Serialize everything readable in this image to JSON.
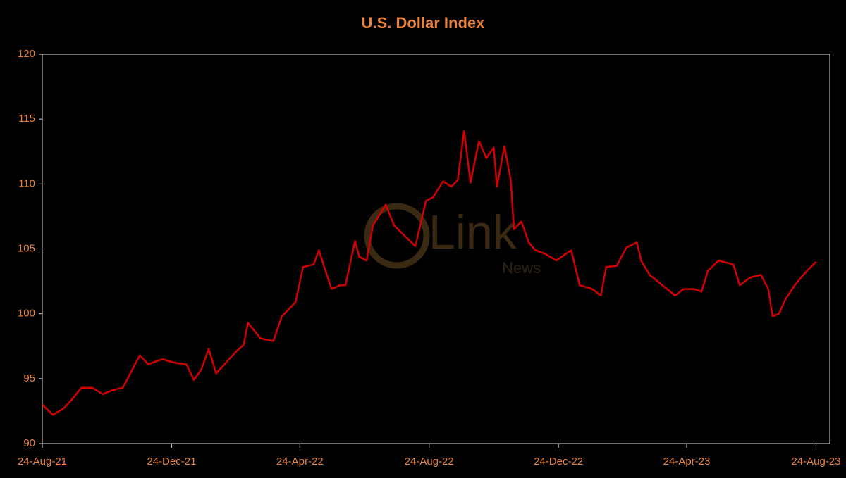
{
  "chart_data": {
    "type": "line",
    "title": "U.S. Dollar Index",
    "watermark": {
      "text": "Link",
      "subtext": "News"
    },
    "x": [
      "2021-08-24",
      "2021-09-03",
      "2021-09-13",
      "2021-09-20",
      "2021-09-30",
      "2021-10-10",
      "2021-10-20",
      "2021-10-29",
      "2021-11-08",
      "2021-11-15",
      "2021-11-24",
      "2021-12-02",
      "2021-12-15",
      "2021-12-28",
      "2022-01-07",
      "2022-01-14",
      "2022-01-21",
      "2022-01-28",
      "2022-02-04",
      "2022-02-13",
      "2022-02-23",
      "2022-03-02",
      "2022-03-06",
      "2022-03-18",
      "2022-03-30",
      "2022-04-07",
      "2022-04-20",
      "2022-04-27",
      "2022-05-07",
      "2022-05-12",
      "2022-05-17",
      "2022-05-24",
      "2022-06-01",
      "2022-06-06",
      "2022-06-15",
      "2022-06-19",
      "2022-06-26",
      "2022-07-02",
      "2022-07-14",
      "2022-07-22",
      "2022-08-01",
      "2022-08-11",
      "2022-08-21",
      "2022-08-28",
      "2022-09-06",
      "2022-09-14",
      "2022-09-20",
      "2022-09-26",
      "2022-10-02",
      "2022-10-10",
      "2022-10-17",
      "2022-10-24",
      "2022-10-27",
      "2022-11-03",
      "2022-11-09",
      "2022-11-12",
      "2022-11-19",
      "2022-11-26",
      "2022-12-02",
      "2022-12-12",
      "2022-12-22",
      "2023-01-05",
      "2023-01-13",
      "2023-01-25",
      "2023-02-02",
      "2023-02-07",
      "2023-02-17",
      "2023-02-26",
      "2023-03-08",
      "2023-03-12",
      "2023-03-20",
      "2023-04-01",
      "2023-04-13",
      "2023-04-21",
      "2023-05-01",
      "2023-05-08",
      "2023-05-14",
      "2023-05-24",
      "2023-06-07",
      "2023-06-13",
      "2023-06-23",
      "2023-07-03",
      "2023-07-10",
      "2023-07-14",
      "2023-07-20",
      "2023-07-26",
      "2023-08-04",
      "2023-08-12",
      "2023-08-19",
      "2023-08-24"
    ],
    "series": [
      {
        "name": "U.S. Dollar Index",
        "color": "#d40000",
        "values": [
          93.0,
          92.2,
          92.7,
          93.3,
          94.3,
          94.3,
          93.8,
          94.1,
          94.3,
          95.4,
          96.8,
          96.1,
          96.5,
          96.2,
          96.1,
          94.9,
          95.7,
          97.3,
          95.4,
          96.2,
          97.1,
          97.6,
          99.3,
          98.1,
          97.9,
          99.8,
          100.9,
          103.6,
          103.8,
          104.9,
          103.6,
          101.9,
          102.2,
          102.2,
          105.6,
          104.4,
          104.1,
          106.8,
          108.4,
          106.8,
          106.0,
          105.2,
          108.7,
          109.0,
          110.2,
          109.8,
          110.3,
          114.1,
          110.1,
          113.3,
          112.0,
          112.8,
          109.8,
          112.9,
          110.3,
          106.5,
          107.1,
          105.5,
          104.9,
          104.6,
          104.1,
          104.9,
          102.2,
          101.9,
          101.4,
          103.6,
          103.7,
          105.1,
          105.5,
          104.1,
          103.0,
          102.2,
          101.4,
          101.9,
          101.9,
          101.7,
          103.3,
          104.1,
          103.8,
          102.2,
          102.8,
          103.0,
          101.9,
          99.8,
          100.0,
          101.1,
          102.2,
          103.0,
          103.6,
          104.0
        ]
      }
    ],
    "xlim": [
      "2021-08-24",
      "2023-09-06"
    ],
    "xticks": [
      {
        "value": "2021-08-24",
        "label": "24-Aug-21"
      },
      {
        "value": "2021-12-24",
        "label": "24-Dec-21"
      },
      {
        "value": "2022-04-24",
        "label": "24-Apr-22"
      },
      {
        "value": "2022-08-24",
        "label": "24-Aug-22"
      },
      {
        "value": "2022-12-24",
        "label": "24-Dec-22"
      },
      {
        "value": "2023-04-24",
        "label": "24-Apr-23"
      },
      {
        "value": "2023-08-24",
        "label": "24-Aug-23"
      }
    ],
    "ylim": [
      90,
      120
    ],
    "yticks": [
      90,
      95,
      100,
      105,
      110,
      115,
      120
    ],
    "grid": false
  }
}
